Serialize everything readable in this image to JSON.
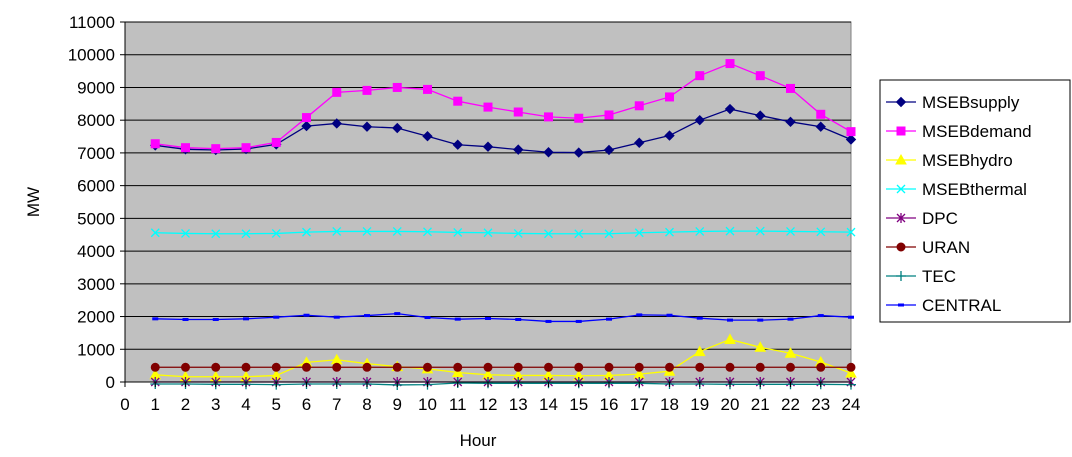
{
  "chart_data": {
    "type": "line",
    "title": "",
    "xlabel": "Hour",
    "ylabel": "MW",
    "x_ticks": [
      "0",
      "1",
      "2",
      "3",
      "4",
      "5",
      "6",
      "7",
      "8",
      "9",
      "10",
      "11",
      "12",
      "13",
      "14",
      "15",
      "16",
      "17",
      "18",
      "19",
      "20",
      "21",
      "22",
      "23",
      "24"
    ],
    "x": [
      1,
      2,
      3,
      4,
      5,
      6,
      7,
      8,
      9,
      10,
      11,
      12,
      13,
      14,
      15,
      16,
      17,
      18,
      19,
      20,
      21,
      22,
      23,
      24
    ],
    "xlim": [
      0,
      24
    ],
    "ylim": [
      0,
      11000
    ],
    "y_ticks": [
      "0",
      "1000",
      "2000",
      "3000",
      "4000",
      "5000",
      "6000",
      "7000",
      "8000",
      "9000",
      "10000",
      "11000"
    ],
    "y_tick_values": [
      0,
      1000,
      2000,
      3000,
      4000,
      5000,
      6000,
      7000,
      8000,
      9000,
      10000,
      11000
    ],
    "grid": "horizontal",
    "plot_background": "#c0c0c0",
    "legend_position": "right",
    "series": [
      {
        "name": "MSEBsupply",
        "color": "#000080",
        "marker": "diamond",
        "values": [
          7230,
          7110,
          7090,
          7120,
          7260,
          7820,
          7900,
          7800,
          7760,
          7510,
          7250,
          7190,
          7100,
          7020,
          7010,
          7090,
          7310,
          7530,
          8000,
          8340,
          8140,
          7950,
          7800,
          7410
        ]
      },
      {
        "name": "MSEBdemand",
        "color": "#ff00ff",
        "marker": "square",
        "values": [
          7280,
          7160,
          7130,
          7160,
          7320,
          8080,
          8850,
          8910,
          9000,
          8940,
          8580,
          8400,
          8250,
          8100,
          8060,
          8160,
          8440,
          8710,
          9360,
          9730,
          9360,
          8970,
          8180,
          7650
        ]
      },
      {
        "name": "MSEBhydro",
        "color": "#ffff00",
        "marker": "triangle",
        "values": [
          220,
          160,
          160,
          160,
          200,
          600,
          680,
          560,
          470,
          400,
          290,
          220,
          200,
          200,
          190,
          200,
          240,
          330,
          930,
          1300,
          1060,
          880,
          610,
          270
        ]
      },
      {
        "name": "MSEBthermal",
        "color": "#00ffff",
        "marker": "x",
        "values": [
          4560,
          4540,
          4530,
          4530,
          4540,
          4580,
          4600,
          4600,
          4600,
          4590,
          4570,
          4560,
          4540,
          4530,
          4530,
          4530,
          4560,
          4580,
          4600,
          4610,
          4610,
          4600,
          4590,
          4580
        ]
      },
      {
        "name": "DPC",
        "color": "#800080",
        "marker": "star",
        "values": [
          0,
          0,
          0,
          0,
          0,
          0,
          0,
          0,
          0,
          0,
          0,
          0,
          0,
          0,
          0,
          0,
          0,
          0,
          0,
          0,
          0,
          0,
          0,
          0
        ]
      },
      {
        "name": "URAN",
        "color": "#800000",
        "marker": "circle",
        "values": [
          450,
          450,
          450,
          450,
          450,
          450,
          450,
          450,
          450,
          450,
          450,
          450,
          450,
          450,
          450,
          450,
          450,
          450,
          450,
          450,
          450,
          450,
          450,
          450
        ]
      },
      {
        "name": "TEC",
        "color": "#008080",
        "marker": "plus",
        "values": [
          -60,
          -60,
          -70,
          -70,
          -80,
          -60,
          -60,
          -60,
          -90,
          -80,
          -30,
          -40,
          -40,
          -40,
          -40,
          -40,
          -40,
          -60,
          -60,
          -70,
          -70,
          -70,
          -70,
          -80
        ]
      },
      {
        "name": "CENTRAL",
        "color": "#0000ff",
        "marker": "dash",
        "values": [
          1930,
          1910,
          1910,
          1930,
          1980,
          2040,
          1980,
          2030,
          2090,
          1970,
          1920,
          1940,
          1910,
          1850,
          1850,
          1920,
          2050,
          2040,
          1950,
          1890,
          1890,
          1920,
          2030,
          1980
        ]
      }
    ]
  }
}
